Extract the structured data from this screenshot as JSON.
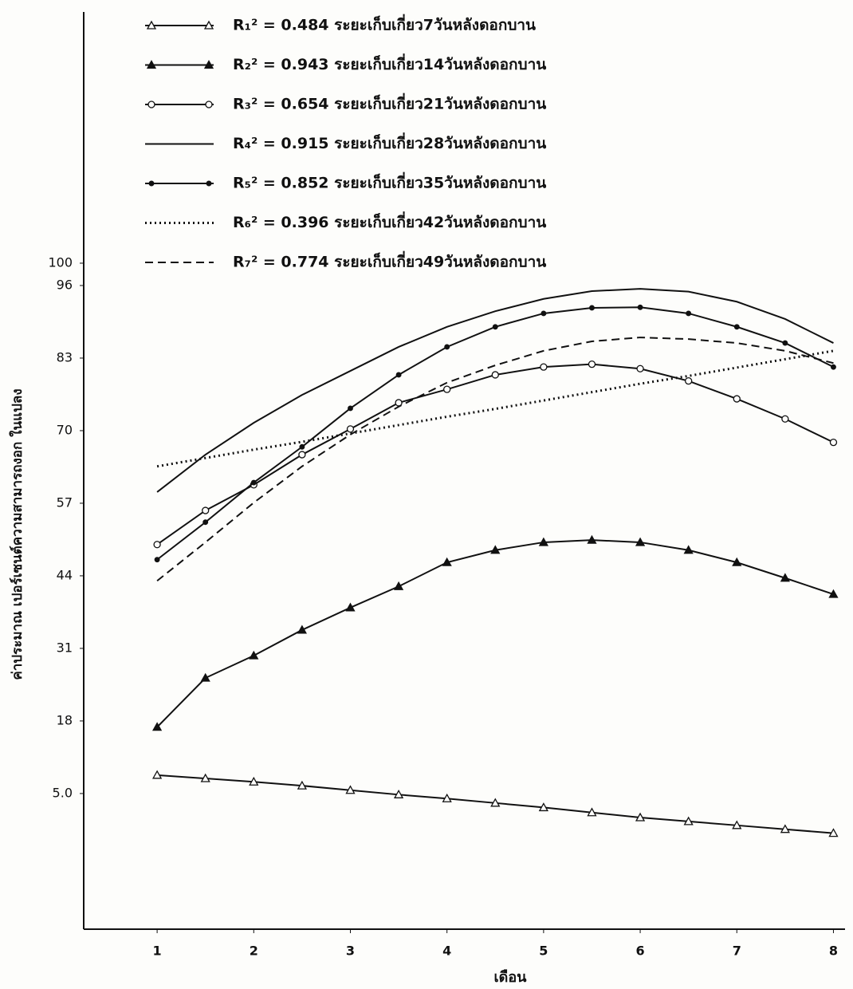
{
  "chart_data": {
    "type": "line",
    "xlabel": "เดือน",
    "ylabel": "ค่าประมาณ เปอร์เซนต์ความสามารถงอก ในแปลง",
    "x": [
      1,
      1.5,
      2,
      2.5,
      3,
      3.5,
      4,
      4.5,
      5,
      5.5,
      6,
      6.5,
      7,
      7.5,
      8
    ],
    "xlim": [
      0.24,
      8.12
    ],
    "xticks": [
      1,
      2,
      3,
      4,
      5,
      6,
      7,
      8
    ],
    "ylim": [
      -19.3,
      145
    ],
    "yticks": [
      100,
      96,
      83,
      70,
      57,
      44,
      31,
      18,
      {
        "value": 5,
        "label": "5.0"
      }
    ],
    "series": [
      {
        "name": "R₁² = 0.484 ระยะเก็บเกี่ยว7วันหลังดอกบาน",
        "color": "#111",
        "marker": "triangle-open",
        "dash": "solid",
        "values": [
          8.3,
          7.7,
          7.1,
          6.4,
          5.6,
          4.8,
          4.1,
          3.3,
          2.5,
          1.6,
          0.7,
          0,
          -0.7,
          -1.4,
          -2.1
        ]
      },
      {
        "name": "R₂² = 0.943 ระยะเก็บเกี่ยว14วันหลังดอกบาน",
        "color": "#111",
        "marker": "triangle",
        "dash": "solid",
        "values": [
          16.9,
          25.7,
          29.7,
          34.3,
          38.3,
          42.1,
          46.4,
          48.6,
          50,
          50.4,
          50,
          48.6,
          46.4,
          43.6,
          40.7
        ]
      },
      {
        "name": "R₃² = 0.654 ระยะเก็บเกี่ยว21วันหลังดอกบาน",
        "color": "#111",
        "marker": "circle-open",
        "dash": "solid",
        "values": [
          49.6,
          55.7,
          60.3,
          65.7,
          70.3,
          75,
          77.4,
          80,
          81.4,
          81.9,
          81.1,
          78.9,
          75.7,
          72.1,
          67.9
        ]
      },
      {
        "name": "R₄² = 0.915 ระยะเก็บเกี่ยว28วันหลังดอกบาน",
        "color": "#111",
        "marker": "none",
        "dash": "solid",
        "values": [
          59,
          65.7,
          71.4,
          76.4,
          80.7,
          85,
          88.6,
          91.4,
          93.6,
          95,
          95.4,
          94.9,
          93.1,
          90,
          85.7
        ]
      },
      {
        "name": "R₅² = 0.852 ระยะเก็บเกี่ยว35วันหลังดอกบาน",
        "color": "#111",
        "marker": "circle",
        "dash": "solid",
        "values": [
          46.9,
          53.6,
          60.7,
          67.1,
          74,
          80,
          85,
          88.6,
          91,
          92,
          92.1,
          91,
          88.6,
          85.7,
          81.4
        ]
      },
      {
        "name": "R₆² = 0.396 ระยะเก็บเกี่ยว42วันหลังดอกบาน",
        "color": "#111",
        "marker": "none",
        "dash": "dotted",
        "values": [
          63.6,
          65.1,
          66.6,
          68,
          69.5,
          71,
          72.5,
          73.9,
          75.4,
          76.9,
          78.4,
          79.8,
          81.3,
          82.8,
          84.3
        ]
      },
      {
        "name": "R₇² = 0.774 ระยะเก็บเกี่ยว49วันหลังดอกบาน",
        "color": "#111",
        "marker": "none",
        "dash": "dashed",
        "values": [
          43.1,
          50,
          57.1,
          63.6,
          69.3,
          74.3,
          78.6,
          81.7,
          84.3,
          86,
          86.7,
          86.4,
          85.7,
          84.3,
          82.1
        ]
      }
    ]
  }
}
